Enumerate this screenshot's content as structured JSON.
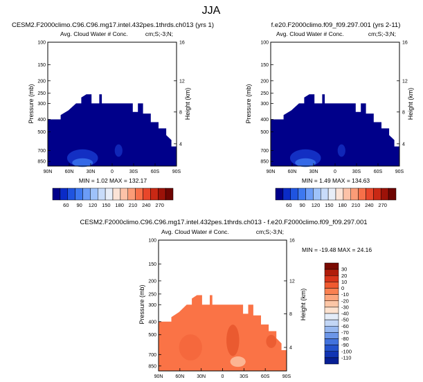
{
  "page_title": "JJA",
  "colors": {
    "fill_navy": "#00008a",
    "fill_orange": "#fa7346",
    "bg": "#ffffff"
  },
  "chart_data": [
    {
      "type": "heatmap",
      "title": "CESM2.F2000climo.C96.C96.mg17.intel.432pes.1thrds.ch013 (yrs 1)",
      "subtitle_left": "Avg. Cloud Water # Conc.",
      "subtitle_right": "cm;S;-3;N;",
      "ylabel": "Pressure (mb)",
      "ylabel_right": "Height (km)",
      "y_ticks": [
        "100",
        "150",
        "200",
        "250",
        "300",
        "400",
        "500",
        "700",
        "850"
      ],
      "y_right_ticks": [
        "16",
        "12",
        "8",
        "4"
      ],
      "x_ticks": [
        "90N",
        "60N",
        "30N",
        "0",
        "30S",
        "60S",
        "90S"
      ],
      "stats": "MIN =   1.02  MAX = 132.17",
      "colorbar_labels": [
        "60",
        "90",
        "120",
        "150",
        "180",
        "210",
        "240",
        "270"
      ],
      "colorbar_colors": [
        "#00008a",
        "#0a2bc7",
        "#1f54e0",
        "#3d78f0",
        "#6b9cf7",
        "#9ec2fa",
        "#c8dcfa",
        "#e8eef8",
        "#fbe3d6",
        "#fcc2a8",
        "#fb9c77",
        "#f77049",
        "#e8462a",
        "#c92814",
        "#9c1208",
        "#6e0502"
      ]
    },
    {
      "type": "heatmap",
      "title": "f.e20.F2000climo.f09_f09.297.001 (yrs 2-11)",
      "subtitle_left": "Avg. Cloud Water # Conc.",
      "subtitle_right": "cm;S;-3;N;",
      "ylabel": "Pressure (mb)",
      "ylabel_right": "Height (km)",
      "y_ticks": [
        "100",
        "150",
        "200",
        "250",
        "300",
        "400",
        "500",
        "700",
        "850"
      ],
      "y_right_ticks": [
        "16",
        "12",
        "8",
        "4"
      ],
      "x_ticks": [
        "90N",
        "60N",
        "30N",
        "0",
        "30S",
        "60S",
        "90S"
      ],
      "stats": "MIN =   1.49  MAX = 134.63",
      "colorbar_labels": [
        "60",
        "90",
        "120",
        "150",
        "180",
        "210",
        "240",
        "270"
      ],
      "colorbar_colors": [
        "#00008a",
        "#0a2bc7",
        "#1f54e0",
        "#3d78f0",
        "#6b9cf7",
        "#9ec2fa",
        "#c8dcfa",
        "#e8eef8",
        "#fbe3d6",
        "#fcc2a8",
        "#fb9c77",
        "#f77049",
        "#e8462a",
        "#c92814",
        "#9c1208",
        "#6e0502"
      ]
    },
    {
      "type": "heatmap",
      "title": "CESM2.F2000climo.C96.C96.mg17.intel.432pes.1thrds.ch013 - f.e20.F2000climo.f09_f09.297.001",
      "subtitle_left": "Avg. Cloud Water # Conc.",
      "subtitle_right": "cm;S;-3;N;",
      "ylabel": "Pressure (mb)",
      "ylabel_right": "Height (km)",
      "y_ticks": [
        "100",
        "150",
        "200",
        "250",
        "300",
        "400",
        "500",
        "700",
        "850"
      ],
      "y_right_ticks": [
        "16",
        "12",
        "8",
        "4"
      ],
      "x_ticks": [
        "90N",
        "60N",
        "30N",
        "0",
        "30S",
        "60S",
        "90S"
      ],
      "stats": "MIN = -19.48  MAX =  24.16",
      "colorbar_labels": [
        "30",
        "20",
        "10",
        "0",
        "-10",
        "-20",
        "-30",
        "-40",
        "-50",
        "-60",
        "-70",
        "-80",
        "-90",
        "-100",
        "-110"
      ],
      "colorbar_colors": [
        "#7a0a02",
        "#b01c0a",
        "#d8341a",
        "#f05a30",
        "#fa8050",
        "#fca57c",
        "#fcc6a6",
        "#fde2cf",
        "#e4ecf8",
        "#c2d6f5",
        "#97b8f0",
        "#6c96e8",
        "#4272dd",
        "#2452cc",
        "#1134b3",
        "#071f94"
      ]
    }
  ]
}
